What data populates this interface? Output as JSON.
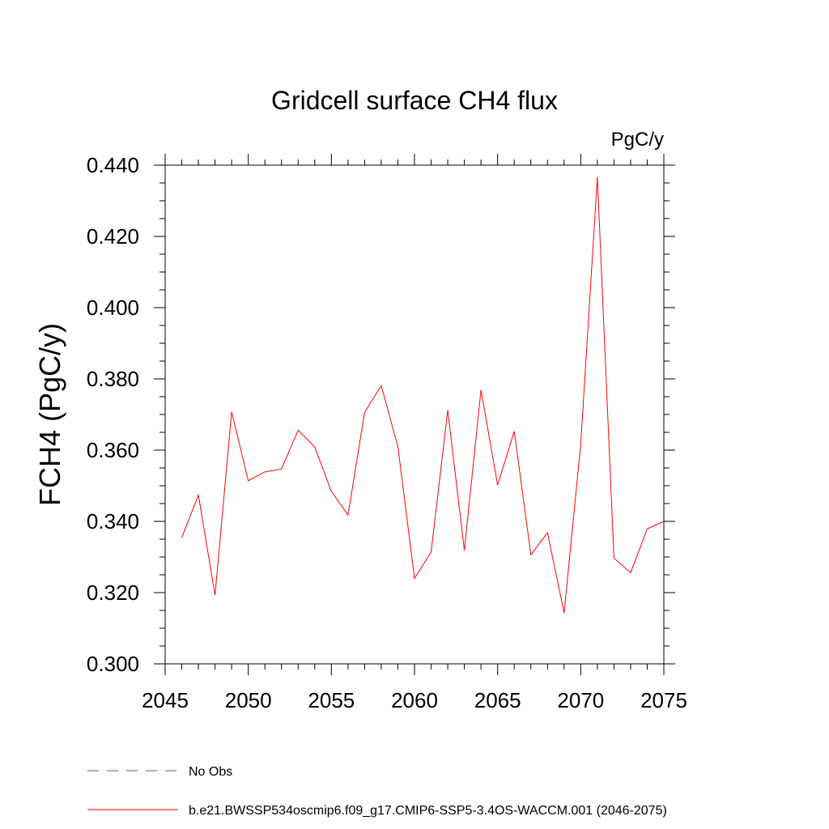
{
  "chart_data": {
    "type": "line",
    "title": "Gridcell surface CH4 flux",
    "units_label": "PgC/y",
    "ylabel": "FCH4  (PgC/y)",
    "xlabel": "",
    "xlim": [
      2045,
      2075
    ],
    "ylim": [
      0.3,
      0.44
    ],
    "x_ticks": [
      2045,
      2050,
      2055,
      2060,
      2065,
      2070,
      2075
    ],
    "x_tick_labels": [
      "2045",
      "2050",
      "2055",
      "2060",
      "2065",
      "2070",
      "2075"
    ],
    "y_ticks": [
      0.3,
      0.32,
      0.34,
      0.36,
      0.38,
      0.4,
      0.42,
      0.44
    ],
    "y_tick_labels": [
      "0.300",
      "0.320",
      "0.340",
      "0.360",
      "0.380",
      "0.400",
      "0.420",
      "0.440"
    ],
    "grid": false,
    "legend_position": "bottom",
    "series": [
      {
        "name": "b.e21.BWSSP534oscmip6.f09_g17.CMIP6-SSP5-3.4OS-WACCM.001 (2046-2075)",
        "color": "#ff0000",
        "style": "solid",
        "x": [
          2046,
          2047,
          2048,
          2049,
          2050,
          2051,
          2052,
          2053,
          2054,
          2055,
          2056,
          2057,
          2058,
          2059,
          2060,
          2061,
          2062,
          2063,
          2064,
          2065,
          2066,
          2067,
          2068,
          2069,
          2070,
          2071,
          2072,
          2073,
          2074,
          2075
        ],
        "values": [
          0.3354,
          0.3474,
          0.3193,
          0.3707,
          0.3514,
          0.3539,
          0.3547,
          0.3656,
          0.3609,
          0.3484,
          0.3418,
          0.3706,
          0.3781,
          0.361,
          0.324,
          0.3314,
          0.3712,
          0.3319,
          0.3769,
          0.3502,
          0.3653,
          0.3306,
          0.3368,
          0.3143,
          0.3616,
          0.4367,
          0.3297,
          0.3256,
          0.3379,
          0.34
        ]
      },
      {
        "name": "No Obs",
        "color": "#5a50a8",
        "style": "dashed",
        "x": [],
        "values": []
      }
    ]
  }
}
